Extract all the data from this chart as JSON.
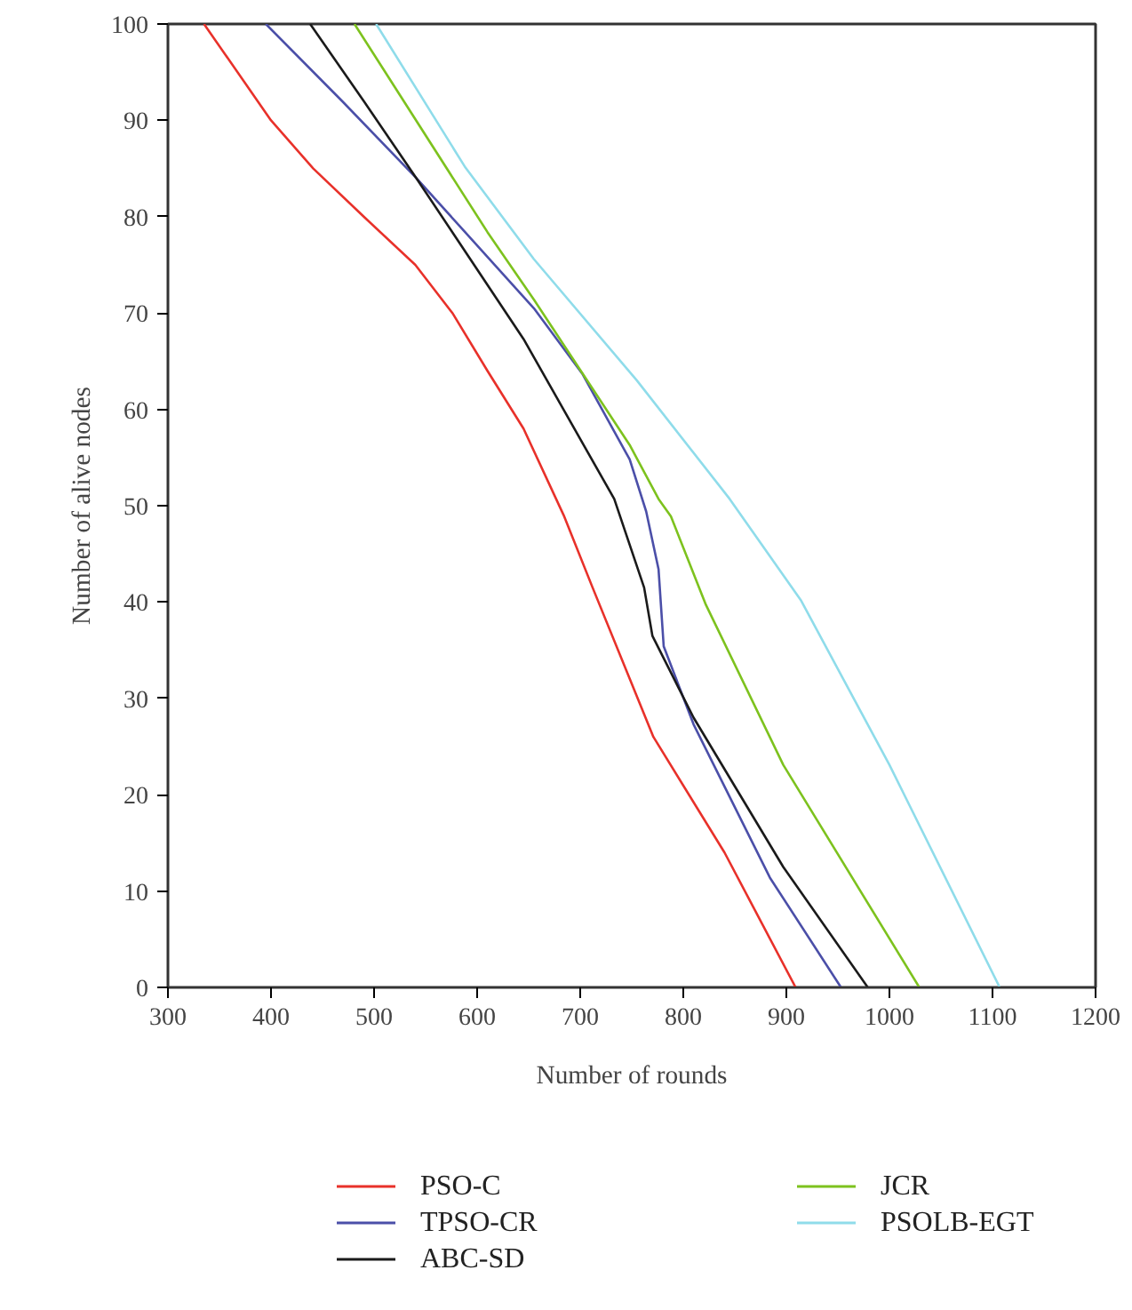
{
  "chart_data": {
    "type": "line",
    "xlabel": "Number of rounds",
    "ylabel": "Number of alive nodes",
    "xlim": [
      300,
      1200
    ],
    "ylim": [
      0,
      100
    ],
    "xticks": [
      300,
      400,
      500,
      600,
      700,
      800,
      900,
      1000,
      1100,
      1200
    ],
    "yticks": [
      0,
      10,
      20,
      30,
      40,
      50,
      60,
      70,
      80,
      90,
      100
    ],
    "grid": false,
    "legend": "bottom",
    "marker": "none",
    "line_style": "solid",
    "series": [
      {
        "name": "PSO-C",
        "color": "#e8312a",
        "x": [
          335,
          400,
          441,
          490,
          540,
          576,
          610,
          645,
          684,
          712,
          771,
          840,
          909
        ],
        "values": [
          100,
          90,
          85,
          80,
          75,
          70,
          64,
          58,
          49,
          41.5,
          26,
          14,
          0
        ]
      },
      {
        "name": "TPSO-CR",
        "color": "#4b4fa8",
        "x": [
          395,
          469,
          541,
          655,
          702,
          748,
          764,
          776,
          781,
          810,
          884,
          953
        ],
        "values": [
          100,
          92,
          84,
          70.5,
          63.7,
          54.8,
          49.4,
          43.4,
          35.4,
          27.3,
          11.4,
          0
        ]
      },
      {
        "name": "ABC-SD",
        "color": "#1a1a1a",
        "x": [
          438,
          490,
          541,
          645,
          733,
          762,
          770,
          810,
          897,
          979
        ],
        "values": [
          100,
          92,
          84,
          67.3,
          50.7,
          41.5,
          36.5,
          28,
          12.5,
          0
        ]
      },
      {
        "name": "JCR",
        "color": "#7dc21e",
        "x": [
          481,
          610,
          655,
          748,
          776,
          788,
          822,
          897,
          1029
        ],
        "values": [
          100,
          78.4,
          71.4,
          56.3,
          50.7,
          48.9,
          39.7,
          23.1,
          0
        ]
      },
      {
        "name": "PSOLB-EGT",
        "color": "#8fdcea",
        "x": [
          502,
          588,
          655,
          755,
          845,
          914,
          1000,
          1107
        ],
        "values": [
          100,
          85.2,
          75.6,
          63,
          50.7,
          40.2,
          23.1,
          0
        ]
      }
    ]
  }
}
